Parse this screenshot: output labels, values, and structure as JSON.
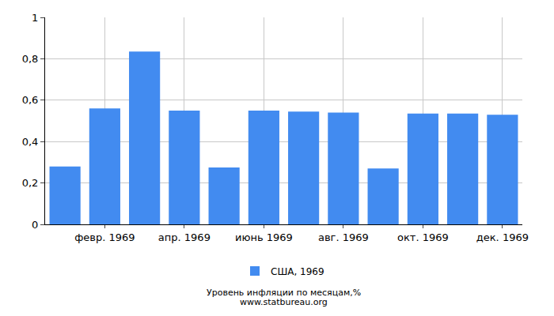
{
  "chart_data": {
    "type": "bar",
    "title": "Уровень инфляции по месяцам,%",
    "subtitle": "www.statbureau.org",
    "categories": [
      null,
      "февр. 1969",
      null,
      "апр. 1969",
      null,
      "июнь 1969",
      null,
      "авг. 1969",
      null,
      "окт. 1969",
      null,
      "дек. 1969"
    ],
    "series": [
      {
        "name": "США, 1969",
        "color": "#428bf0",
        "values": [
          0.28,
          0.56,
          0.835,
          0.55,
          0.275,
          0.55,
          0.545,
          0.54,
          0.27,
          0.535,
          0.535,
          0.53
        ]
      }
    ],
    "ylim": [
      0,
      1
    ],
    "yticks": [
      0,
      {
        "value": 0.2,
        "label": "0,2"
      },
      {
        "value": 0.4,
        "label": "0,4"
      },
      {
        "value": 0.6,
        "label": "0,6"
      },
      {
        "value": 0.8,
        "label": "0,8"
      },
      1
    ],
    "grid": true,
    "legend": "bottom"
  }
}
